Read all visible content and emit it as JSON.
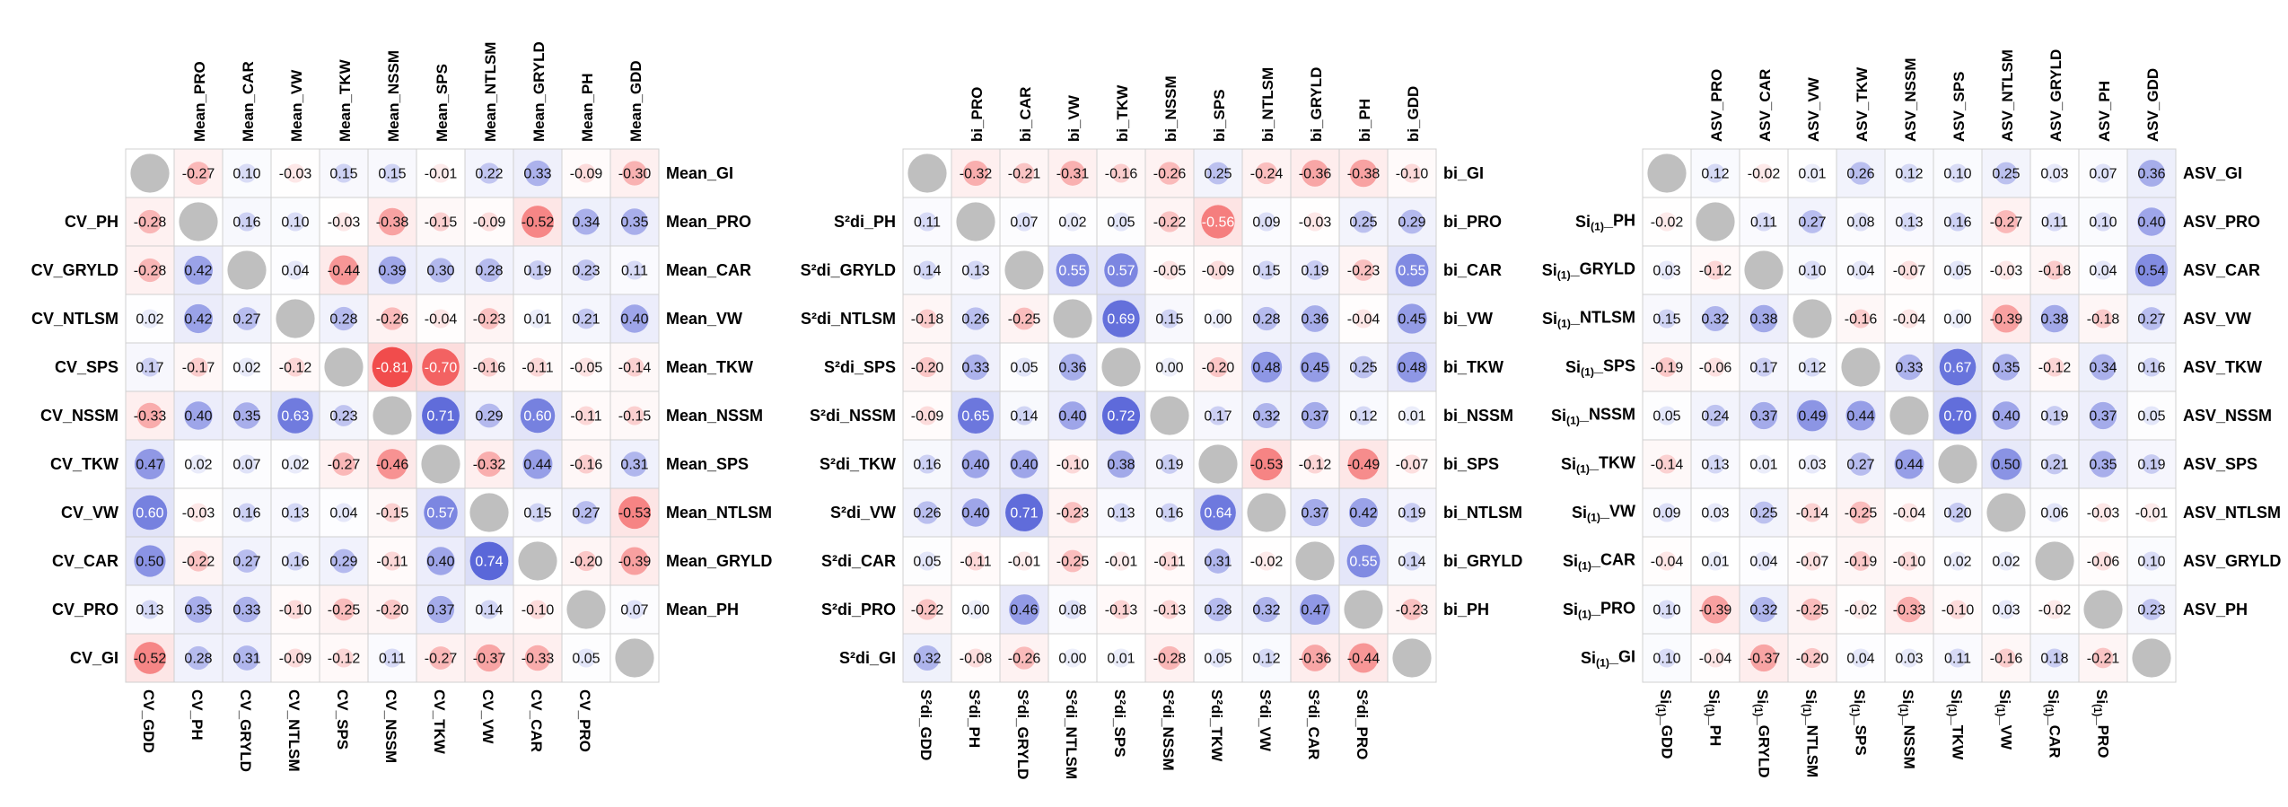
{
  "chart_data": [
    {
      "type": "heatmap",
      "title": "",
      "row_labels": [
        "",
        "CV_PH",
        "CV_GRYLD",
        "CV_NTLSM",
        "CV_SPS",
        "CV_NSSM",
        "CV_TKW",
        "CV_VW",
        "CV_CAR",
        "CV_PRO",
        "CV_GI"
      ],
      "col_labels": [
        "CV_GDD",
        "CV_PH",
        "CV_GRYLD",
        "CV_NTLSM",
        "CV_SPS",
        "CV_NSSM",
        "CV_TKW",
        "CV_VW",
        "CV_CAR",
        "CV_PRO",
        ""
      ],
      "top_labels": [
        "",
        "Mean_PRO",
        "Mean_CAR",
        "Mean_VW",
        "Mean_TKW",
        "Mean_NSSM",
        "Mean_SPS",
        "Mean_NTLSM",
        "Mean_GRYLD",
        "Mean_PH",
        "Mean_GDD"
      ],
      "right_labels": [
        "Mean_GI",
        "Mean_PRO",
        "Mean_CAR",
        "Mean_VW",
        "Mean_TKW",
        "Mean_NSSM",
        "Mean_SPS",
        "Mean_NTLSM",
        "Mean_GRYLD",
        "Mean_PH",
        ""
      ],
      "matrix": [
        [
          null,
          -0.27,
          0.1,
          -0.03,
          0.15,
          0.15,
          -0.01,
          0.22,
          0.33,
          -0.09,
          -0.3
        ],
        [
          -0.28,
          null,
          0.16,
          0.1,
          -0.03,
          -0.38,
          -0.15,
          -0.09,
          -0.52,
          0.34,
          0.35
        ],
        [
          -0.28,
          0.42,
          null,
          0.04,
          -0.44,
          0.39,
          0.3,
          0.28,
          0.19,
          0.23,
          0.11
        ],
        [
          0.02,
          0.42,
          0.27,
          null,
          0.28,
          -0.26,
          -0.04,
          -0.23,
          0.01,
          0.21,
          0.4
        ],
        [
          0.17,
          -0.17,
          0.02,
          -0.12,
          null,
          -0.81,
          -0.7,
          -0.16,
          -0.11,
          -0.05,
          -0.14
        ],
        [
          -0.33,
          0.4,
          0.35,
          0.63,
          0.23,
          null,
          0.71,
          0.29,
          0.6,
          -0.11,
          -0.15
        ],
        [
          0.47,
          0.02,
          0.07,
          0.02,
          -0.27,
          -0.46,
          null,
          -0.32,
          0.44,
          -0.16,
          0.31
        ],
        [
          0.6,
          -0.03,
          0.16,
          0.13,
          0.04,
          -0.15,
          0.57,
          null,
          0.15,
          0.27,
          -0.53
        ],
        [
          0.5,
          -0.22,
          0.27,
          0.16,
          0.29,
          -0.11,
          0.4,
          0.74,
          null,
          -0.2,
          -0.39
        ],
        [
          0.13,
          0.35,
          0.33,
          -0.1,
          -0.25,
          -0.2,
          0.37,
          0.14,
          -0.1,
          null,
          0.07
        ],
        [
          -0.52,
          0.28,
          0.31,
          -0.09,
          -0.12,
          0.11,
          -0.27,
          -0.37,
          -0.33,
          0.05,
          null
        ]
      ],
      "value_range": [
        -1,
        1
      ]
    },
    {
      "type": "heatmap",
      "title": "",
      "row_labels": [
        "",
        "S²di_PH",
        "S²di_GRYLD",
        "S²di_NTLSM",
        "S²di_SPS",
        "S²di_NSSM",
        "S²di_TKW",
        "S²di_VW",
        "S²di_CAR",
        "S²di_PRO",
        "S²di_GI"
      ],
      "col_labels": [
        "S²di_GDD",
        "S²di_PH",
        "S²di_GRYLD",
        "S²di_NTLSM",
        "S²di_SPS",
        "S²di_NSSM",
        "S²di_TKW",
        "S²di_VW",
        "S²di_CAR",
        "S²di_PRO",
        ""
      ],
      "top_labels": [
        "",
        "bi_PRO",
        "bi_CAR",
        "bi_VW",
        "bi_TKW",
        "bi_NSSM",
        "bi_SPS",
        "bi_NTLSM",
        "bi_GRYLD",
        "bi_PH",
        "bi_GDD"
      ],
      "right_labels": [
        "bi_GI",
        "bi_PRO",
        "bi_CAR",
        "bi_VW",
        "bi_TKW",
        "bi_NSSM",
        "bi_SPS",
        "bi_NTLSM",
        "bi_GRYLD",
        "bi_PH",
        ""
      ],
      "matrix": [
        [
          null,
          -0.32,
          -0.21,
          -0.31,
          -0.16,
          -0.26,
          0.25,
          -0.24,
          -0.36,
          -0.38,
          -0.1
        ],
        [
          0.11,
          null,
          0.07,
          0.02,
          0.05,
          -0.22,
          -0.56,
          0.09,
          -0.03,
          0.25,
          0.29
        ],
        [
          0.14,
          0.13,
          null,
          0.55,
          0.57,
          -0.05,
          -0.09,
          0.15,
          0.19,
          -0.23,
          0.55
        ],
        [
          -0.18,
          0.26,
          -0.25,
          null,
          0.69,
          0.15,
          0.0,
          0.28,
          0.36,
          -0.04,
          0.45
        ],
        [
          -0.2,
          0.33,
          0.05,
          0.36,
          null,
          0.0,
          -0.2,
          0.48,
          0.45,
          0.25,
          0.48
        ],
        [
          -0.09,
          0.65,
          0.14,
          0.4,
          0.72,
          null,
          0.17,
          0.32,
          0.37,
          0.12,
          0.01
        ],
        [
          0.16,
          0.4,
          0.4,
          -0.1,
          0.38,
          0.19,
          null,
          -0.53,
          -0.12,
          -0.49,
          -0.07
        ],
        [
          0.26,
          0.4,
          0.71,
          -0.23,
          0.13,
          0.16,
          0.64,
          null,
          0.37,
          0.42,
          0.19
        ],
        [
          0.05,
          -0.11,
          -0.01,
          -0.25,
          -0.01,
          -0.11,
          0.31,
          -0.02,
          null,
          0.55,
          0.14
        ],
        [
          -0.22,
          0.0,
          0.46,
          0.08,
          -0.13,
          -0.13,
          0.28,
          0.32,
          0.47,
          null,
          -0.23
        ],
        [
          0.32,
          -0.08,
          -0.26,
          0.0,
          0.01,
          -0.28,
          0.05,
          0.12,
          -0.36,
          -0.44,
          null
        ]
      ],
      "value_range": [
        -1,
        1
      ]
    },
    {
      "type": "heatmap",
      "title": "",
      "row_labels": [
        "",
        "Si(1)_PH",
        "Si(1)_GRYLD",
        "Si(1)_NTLSM",
        "Si(1)_SPS",
        "Si(1)_NSSM",
        "Si(1)_TKW",
        "Si(1)_VW",
        "Si(1)_CAR",
        "Si(1)_PRO",
        "Si(1)_GI"
      ],
      "col_labels": [
        "Si(1)_GDD",
        "Si(1)_PH",
        "Si(1)_GRYLD",
        "Si(1)_NTLSM",
        "Si(1)_SPS",
        "Si(1)_NSSM",
        "Si(1)_TKW",
        "Si(1)_VW",
        "Si(1)_CAR",
        "Si(1)_PRO",
        ""
      ],
      "top_labels": [
        "",
        "ASV_PRO",
        "ASV_CAR",
        "ASV_VW",
        "ASV_TKW",
        "ASV_NSSM",
        "ASV_SPS",
        "ASV_NTLSM",
        "ASV_GRYLD",
        "ASV_PH",
        "ASV_GDD"
      ],
      "right_labels": [
        "ASV_GI",
        "ASV_PRO",
        "ASV_CAR",
        "ASV_VW",
        "ASV_TKW",
        "ASV_NSSM",
        "ASV_SPS",
        "ASV_NTLSM",
        "ASV_GRYLD",
        "ASV_PH",
        ""
      ],
      "matrix": [
        [
          null,
          0.12,
          -0.02,
          0.01,
          0.26,
          0.12,
          0.1,
          0.25,
          0.03,
          0.07,
          0.36
        ],
        [
          -0.02,
          null,
          0.11,
          0.27,
          0.08,
          0.13,
          0.16,
          -0.27,
          0.11,
          0.1,
          0.4
        ],
        [
          0.03,
          -0.12,
          null,
          0.1,
          0.04,
          -0.07,
          0.05,
          -0.03,
          -0.18,
          0.04,
          0.54
        ],
        [
          0.15,
          0.32,
          0.38,
          null,
          -0.16,
          -0.04,
          0.0,
          -0.39,
          0.38,
          -0.18,
          0.27
        ],
        [
          -0.19,
          -0.06,
          0.17,
          0.12,
          null,
          0.33,
          0.67,
          0.35,
          -0.12,
          0.34,
          0.16
        ],
        [
          0.05,
          0.24,
          0.37,
          0.49,
          0.44,
          null,
          0.7,
          0.4,
          0.19,
          0.37,
          0.05
        ],
        [
          -0.14,
          0.13,
          0.01,
          0.03,
          0.27,
          0.44,
          null,
          0.5,
          0.21,
          0.35,
          0.19
        ],
        [
          0.09,
          0.03,
          0.25,
          -0.14,
          -0.25,
          -0.04,
          0.2,
          null,
          0.06,
          -0.03,
          -0.01
        ],
        [
          -0.04,
          0.01,
          0.04,
          -0.07,
          -0.19,
          -0.1,
          0.02,
          0.02,
          null,
          -0.06,
          0.1
        ],
        [
          0.1,
          -0.39,
          0.32,
          -0.25,
          -0.02,
          -0.33,
          -0.1,
          0.03,
          -0.02,
          null,
          0.23
        ],
        [
          0.1,
          -0.04,
          -0.37,
          -0.2,
          0.04,
          0.03,
          0.11,
          -0.16,
          0.18,
          -0.21,
          null
        ]
      ],
      "value_range": [
        -1,
        1
      ]
    }
  ],
  "colors": {
    "positive": "#2233cc",
    "negative": "#ee2222",
    "diagonal": "#bfbfbf",
    "grid": "#d0d0d0"
  }
}
